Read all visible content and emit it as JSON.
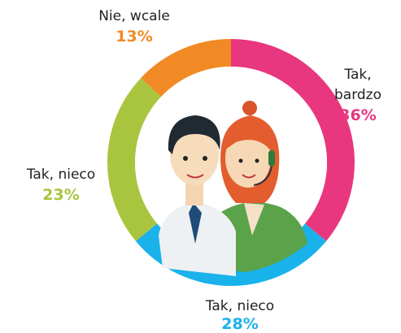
{
  "chart_data": {
    "type": "donut",
    "categories": [
      "Tak, bardzo",
      "Tak, nieco",
      "Tak, nieco",
      "Nie, wcale"
    ],
    "values": [
      36,
      28,
      23,
      13
    ],
    "value_labels": [
      "36%",
      "28%",
      "23%",
      "13%"
    ],
    "colors": [
      "#e8377f",
      "#19b2ea",
      "#a9c540",
      "#f18a25"
    ]
  }
}
